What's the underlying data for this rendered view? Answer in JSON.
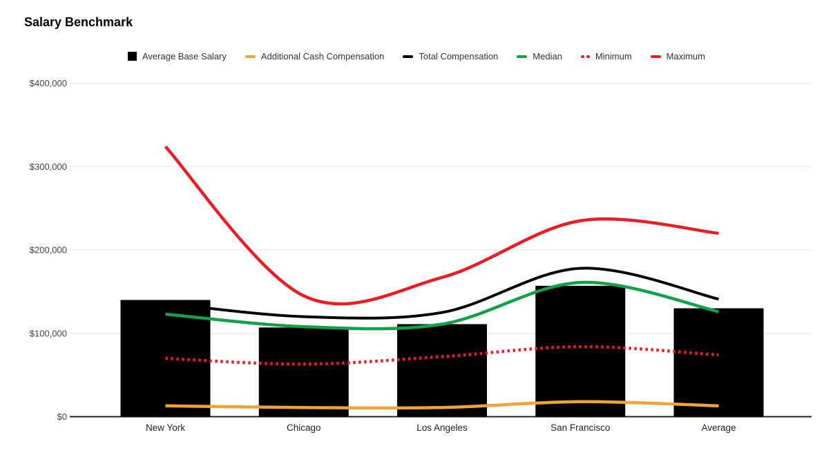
{
  "chart_data": {
    "type": "combo-bar-smooth-line",
    "title": "Salary Benchmark",
    "categories": [
      "New York",
      "Chicago",
      "Los Angeles",
      "San Francisco",
      "Average"
    ],
    "series": [
      {
        "name": "Average Base Salary",
        "type": "bar",
        "color": "#000000",
        "values": [
          140000,
          107000,
          111000,
          157000,
          130000
        ]
      },
      {
        "name": "Additional Cash Compensation",
        "type": "line",
        "style": "solid",
        "color": "#F1A33B",
        "values": [
          13000,
          11000,
          11000,
          18000,
          13000
        ]
      },
      {
        "name": "Total Compensation",
        "type": "line",
        "style": "solid",
        "color": "#000000",
        "values": [
          136000,
          120000,
          125000,
          178000,
          141000
        ]
      },
      {
        "name": "Median",
        "type": "line",
        "style": "solid",
        "color": "#12A04B",
        "values": [
          123000,
          108000,
          111000,
          161000,
          126000
        ]
      },
      {
        "name": "Minimum",
        "type": "line",
        "style": "dotted",
        "color": "#ED1C24",
        "values": [
          70000,
          63000,
          72000,
          84000,
          74000
        ]
      },
      {
        "name": "Maximum",
        "type": "line",
        "style": "solid",
        "color": "#ED1C24",
        "values": [
          324000,
          145000,
          167000,
          235000,
          220000
        ]
      }
    ],
    "y_axis": {
      "min": 0,
      "max": 400000,
      "tick_step": 100000,
      "tick_labels": [
        "$0",
        "$100,000",
        "$200,000",
        "$300,000",
        "$400,000"
      ]
    },
    "x_axis_label": "",
    "y_axis_label": "",
    "legend_position": "top",
    "grid": "horizontal",
    "background": "#ffffff",
    "gridline_color": "#e3e3e3",
    "axis_line_color": "#212121",
    "tick_text_color": "#444444",
    "category_text_color": "#222222"
  }
}
